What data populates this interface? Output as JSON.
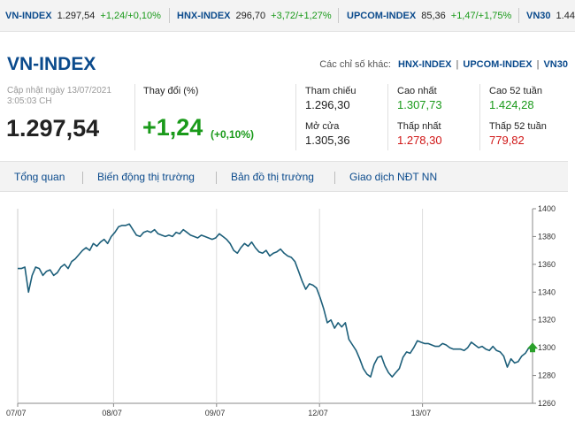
{
  "ticker": [
    {
      "name": "VN-INDEX",
      "value": "1.297,54",
      "change": "+1,24/+0,10%"
    },
    {
      "name": "HNX-INDEX",
      "value": "296,70",
      "change": "+3,72/+1,27%"
    },
    {
      "name": "UPCOM-INDEX",
      "value": "85,36",
      "change": "+1,47/+1,75%"
    },
    {
      "name": "VN30",
      "value": "1.44"
    }
  ],
  "header": {
    "title": "VN-INDEX",
    "others_label": "Các chỉ số khác:",
    "others": [
      "HNX-INDEX",
      "UPCOM-INDEX",
      "VN30"
    ],
    "updated_label": "Cập nhật ngày 13/07/2021",
    "updated_time": "3:05:03 CH",
    "price": "1.297,54",
    "change_label": "Thay đổi (%)",
    "change": "+1,24",
    "change_pct": "(+0,10%)"
  },
  "stats": {
    "ref_label": "Tham chiếu",
    "ref_value": "1.296,30",
    "open_label": "Mở cửa",
    "open_value": "1.305,36",
    "high_label": "Cao nhất",
    "high_value": "1.307,73",
    "low_label": "Thấp nhất",
    "low_value": "1.278,30",
    "high52_label": "Cao 52 tuần",
    "high52_value": "1.424,28",
    "low52_label": "Thấp 52 tuần",
    "low52_value": "779,82"
  },
  "tabs": [
    "Tổng quan",
    "Biến động thị trường",
    "Bản đồ thị trường",
    "Giao dịch NĐT NN"
  ],
  "colors": {
    "brand": "#0a4a8c",
    "up": "#1a9a1a",
    "down": "#d01515",
    "line": "#1d5f7a"
  },
  "chart_data": {
    "type": "line",
    "xlabel": "",
    "ylabel": "",
    "ylim": [
      1260,
      1400
    ],
    "yticks": [
      "1400",
      "1380",
      "1360",
      "1340",
      "1320",
      "1300",
      "1280",
      "1260"
    ],
    "xticks": [
      "07/07",
      "08/07",
      "09/07",
      "12/07",
      "13/07"
    ],
    "series": [
      {
        "values": [
          1357,
          1357,
          1358,
          1340,
          1352,
          1358,
          1357,
          1352,
          1355,
          1356,
          1352,
          1354,
          1358,
          1360,
          1357,
          1362,
          1364,
          1367,
          1370,
          1372,
          1370,
          1375,
          1373,
          1376,
          1378,
          1375,
          1380,
          1383,
          1387,
          1388,
          1388,
          1389,
          1385,
          1381,
          1380,
          1383,
          1384,
          1383,
          1385,
          1382,
          1381,
          1380,
          1381,
          1380,
          1383,
          1382,
          1385,
          1383,
          1381,
          1380,
          1379,
          1381,
          1380,
          1379,
          1378,
          1379,
          1382,
          1380,
          1378,
          1375,
          1370,
          1368,
          1372,
          1375,
          1373,
          1376,
          1372,
          1369,
          1368,
          1370,
          1366,
          1368,
          1369,
          1371,
          1368,
          1366,
          1365,
          1362,
          1355,
          1348,
          1342,
          1346,
          1345,
          1343,
          1336,
          1328,
          1318,
          1320,
          1314,
          1318,
          1315,
          1318,
          1306,
          1302,
          1298,
          1292,
          1285,
          1281,
          1279,
          1288,
          1293,
          1294,
          1287,
          1282,
          1279,
          1282,
          1285,
          1293,
          1297,
          1296,
          1300,
          1305,
          1304,
          1303,
          1303,
          1302,
          1301,
          1301,
          1303,
          1302,
          1300,
          1299,
          1299,
          1299,
          1298,
          1300,
          1304,
          1302,
          1300,
          1301,
          1299,
          1298,
          1301,
          1298,
          1297,
          1294,
          1286,
          1292,
          1289,
          1290,
          1294,
          1296,
          1300,
          1298
        ]
      }
    ]
  }
}
